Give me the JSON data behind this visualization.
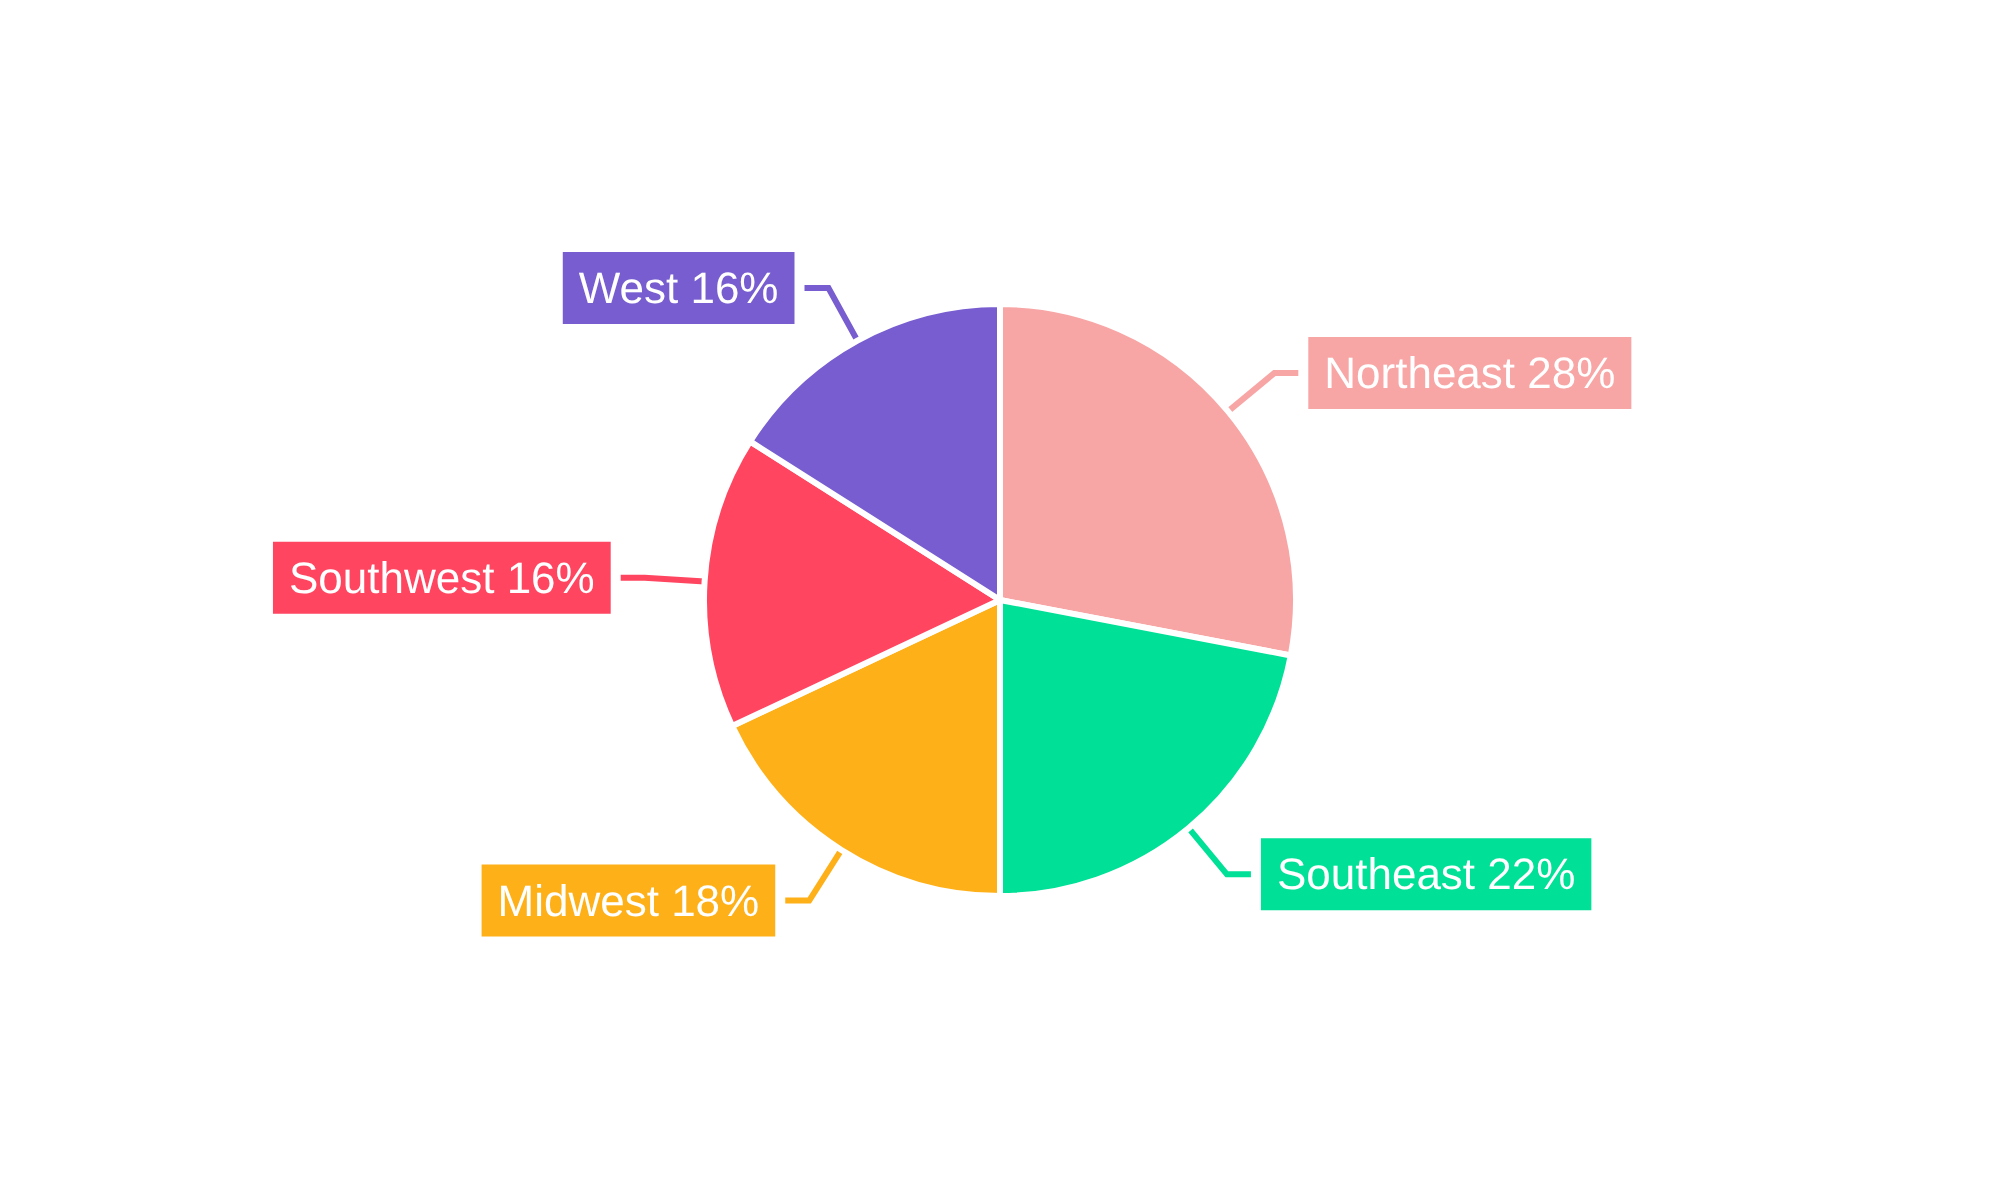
{
  "chart_data": {
    "type": "pie",
    "categories": [
      "Northeast",
      "Southeast",
      "Midwest",
      "Southwest",
      "West"
    ],
    "values": [
      28,
      22,
      18,
      16,
      16
    ],
    "value_labels": [
      "28%",
      "22%",
      "18%",
      "16%",
      "16%"
    ],
    "colors": [
      "#f8a5a5",
      "#00e096",
      "#feb019",
      "#ff4560",
      "#775dd0"
    ],
    "legend": false
  }
}
